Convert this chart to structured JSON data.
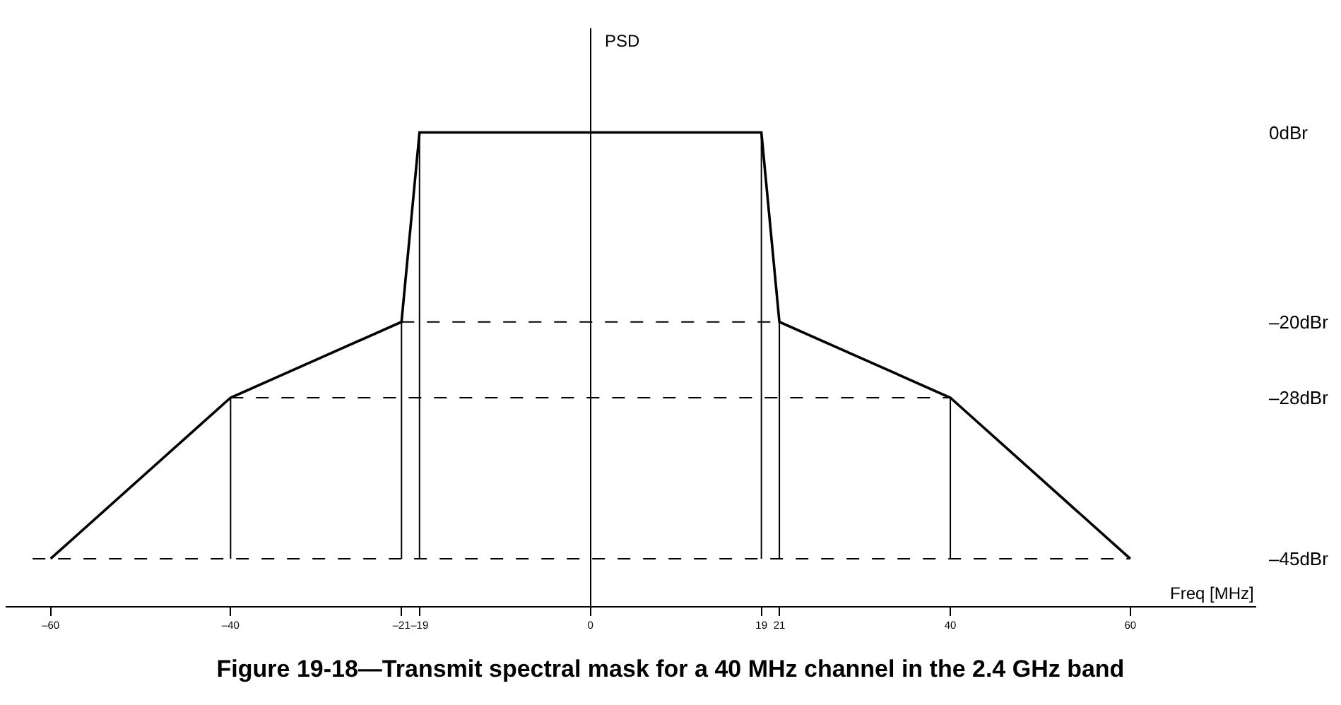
{
  "chart_data": {
    "type": "line",
    "title": "Figure 19-18—Transmit spectral mask for a 40 MHz channel in the 2.4 GHz band",
    "xlabel": "Freq [MHz]",
    "ylabel": "PSD",
    "xlim": [
      -65,
      74
    ],
    "ylim": [
      -50,
      11
    ],
    "xticks": [
      {
        "value": -60,
        "label": "–60"
      },
      {
        "value": -40,
        "label": "–40"
      },
      {
        "value": -21,
        "label": "–21"
      },
      {
        "value": -19,
        "label": "–19"
      },
      0,
      19,
      21,
      40,
      60
    ],
    "yticks": [
      {
        "value": 0,
        "label": "0dBr"
      },
      {
        "value": -20,
        "label": "–20dBr"
      },
      {
        "value": -28,
        "label": "–28dBr"
      },
      {
        "value": -45,
        "label": "–45dBr"
      }
    ],
    "marker": "none",
    "series": [
      {
        "color": "#000000",
        "line_style": "solid",
        "x": [
          -60,
          -40,
          -21,
          -19,
          19,
          21,
          40,
          60
        ],
        "values": [
          -45,
          -28,
          -20,
          0,
          0,
          -20,
          -28,
          -45
        ]
      },
      {
        "color": "#000000",
        "line_style": "dashed",
        "x": [
          -21,
          21
        ],
        "values": [
          -20,
          -20
        ]
      },
      {
        "color": "#000000",
        "line_style": "dashed",
        "x": [
          -40,
          40
        ],
        "values": [
          -28,
          -28
        ]
      },
      {
        "color": "#000000",
        "line_style": "dashed",
        "x": [
          -62,
          60
        ],
        "values": [
          -45,
          -45
        ]
      },
      {
        "color": "#000000",
        "line_style": "solid",
        "x": [
          -40,
          -40
        ],
        "values": [
          -45,
          -28
        ]
      },
      {
        "color": "#000000",
        "line_style": "solid",
        "x": [
          -21,
          -21
        ],
        "values": [
          -45,
          -20
        ]
      },
      {
        "color": "#000000",
        "line_style": "solid",
        "x": [
          -19,
          -19
        ],
        "values": [
          -45,
          0
        ]
      },
      {
        "color": "#000000",
        "line_style": "solid",
        "x": [
          19,
          19
        ],
        "values": [
          -45,
          0
        ]
      },
      {
        "color": "#000000",
        "line_style": "solid",
        "x": [
          21,
          21
        ],
        "values": [
          -45,
          -20
        ]
      },
      {
        "color": "#000000",
        "line_style": "solid",
        "x": [
          40,
          40
        ],
        "values": [
          -45,
          -28
        ]
      }
    ]
  }
}
